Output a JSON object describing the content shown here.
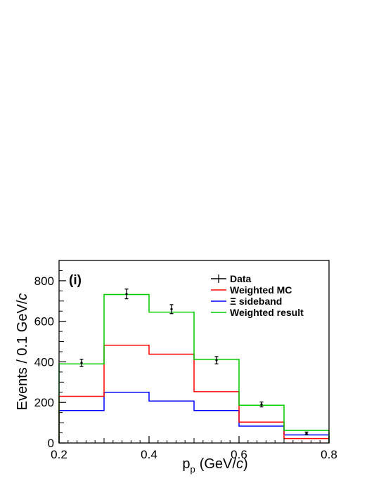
{
  "chart_data": {
    "type": "histogram",
    "panel_label": "(i)",
    "xlabel": "p",
    "xlabel_sub": "p",
    "xlabel_unit_prefix": "(GeV/",
    "xlabel_unit_italic": "c",
    "xlabel_unit_suffix": ")",
    "ylabel_prefix": "Events / 0.1 GeV/",
    "ylabel_italic": "c",
    "xlim": [
      0.2,
      0.8
    ],
    "ylim": [
      0,
      900
    ],
    "x_ticks": [
      0.2,
      0.4,
      0.6,
      0.8
    ],
    "x_tick_labels": [
      "0.2",
      "0.4",
      "0.6",
      "0.8"
    ],
    "y_ticks": [
      0,
      200,
      400,
      600,
      800
    ],
    "y_tick_labels": [
      "0",
      "200",
      "400",
      "600",
      "800"
    ],
    "bin_edges": [
      0.2,
      0.3,
      0.4,
      0.5,
      0.6,
      0.7,
      0.8
    ],
    "legend_position": "top-right",
    "series": [
      {
        "name": "Data",
        "kind": "points",
        "color": "#000000",
        "x": [
          0.25,
          0.35,
          0.45,
          0.55,
          0.65,
          0.75
        ],
        "values": [
          395,
          735,
          660,
          408,
          190,
          48
        ],
        "errors": [
          18,
          24,
          22,
          18,
          12,
          6
        ]
      },
      {
        "name": "Weighted MC",
        "kind": "step",
        "color": "#ff0000",
        "values": [
          230,
          482,
          438,
          253,
          103,
          22
        ]
      },
      {
        "name": "Ξ sideband",
        "kind": "step",
        "color": "#0000ff",
        "values": [
          160,
          250,
          207,
          160,
          83,
          40
        ]
      },
      {
        "name": "Weighted result",
        "kind": "step",
        "color": "#00cc00",
        "values": [
          390,
          732,
          645,
          412,
          186,
          62
        ]
      }
    ]
  }
}
